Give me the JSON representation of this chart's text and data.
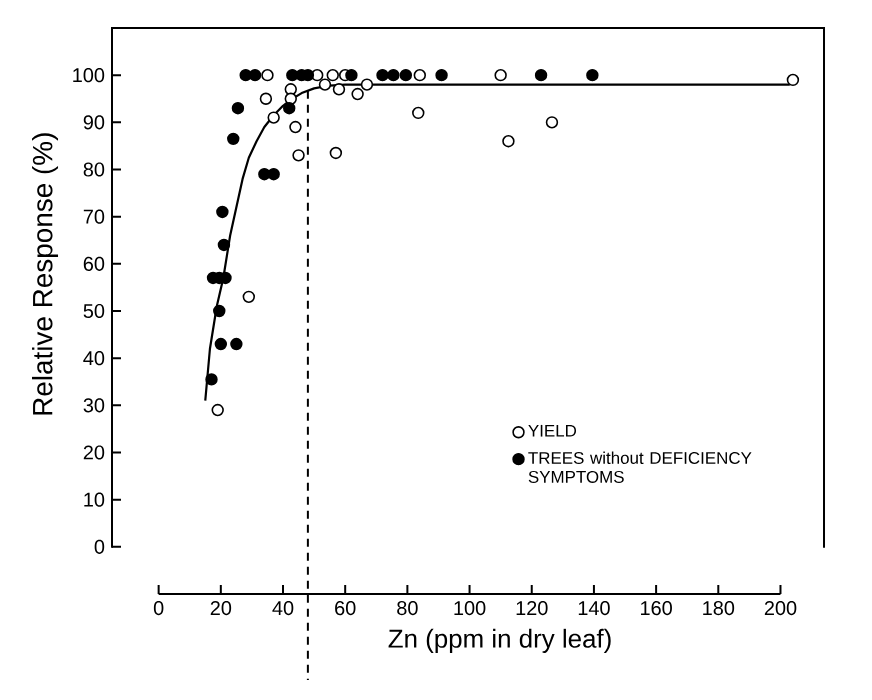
{
  "chart_data": {
    "type": "scatter",
    "xlabel": "Zn (ppm in dry leaf)",
    "ylabel": "Relative Response (%)",
    "xlim": [
      -15,
      214
    ],
    "ylim": [
      -10,
      110
    ],
    "xticks": [
      0,
      20,
      40,
      60,
      80,
      100,
      120,
      140,
      160,
      180,
      200
    ],
    "yticks": [
      0,
      10,
      20,
      30,
      40,
      50,
      60,
      70,
      80,
      90,
      100
    ],
    "legend": "bottom right",
    "series": [
      {
        "name": "YIELD",
        "color": "#ffffff",
        "marker": "circle",
        "x": [
          19,
          29,
          35,
          34.5,
          37,
          42.5,
          42.5,
          44,
          45,
          51,
          53.5,
          56,
          57,
          58,
          60,
          64,
          67,
          84,
          83.5,
          110,
          112.5,
          126.5,
          204
        ],
        "values": [
          29,
          53,
          100,
          95,
          91,
          97,
          95,
          89,
          83,
          100,
          98,
          100,
          83.5,
          97,
          100,
          96,
          98,
          100,
          92,
          100,
          86,
          90,
          99
        ]
      },
      {
        "name": "TREES without DEFICIENCY SYMPTOMS",
        "color": "#000000",
        "marker": "circle",
        "x": [
          17,
          20,
          25,
          19.5,
          17.5,
          19.5,
          21.5,
          21,
          20.5,
          24,
          25.5,
          28,
          31,
          34,
          37,
          42,
          43,
          46,
          48,
          62,
          72,
          75.5,
          79.5,
          91,
          123,
          139.5
        ],
        "values": [
          35.5,
          43,
          43,
          50,
          57,
          57,
          57,
          64,
          71,
          86.5,
          93,
          100,
          100,
          79,
          79,
          93,
          100,
          100,
          100,
          100,
          100,
          100,
          100,
          100,
          100,
          100
        ]
      },
      {
        "type": "line",
        "color": "#000000",
        "x": [
          15,
          16.5,
          18.7,
          20.8,
          23,
          25,
          27,
          29,
          31.5,
          34,
          37,
          40,
          43,
          46,
          50,
          55,
          60,
          203
        ],
        "values": [
          31,
          42,
          51,
          57,
          66,
          72,
          78,
          82.5,
          86,
          89,
          91.5,
          93.5,
          95,
          96.2,
          97.2,
          97.8,
          98,
          98
        ]
      }
    ],
    "ref_lines": [
      {
        "axis": "x",
        "value": 48,
        "line_style": "dashed"
      }
    ]
  }
}
